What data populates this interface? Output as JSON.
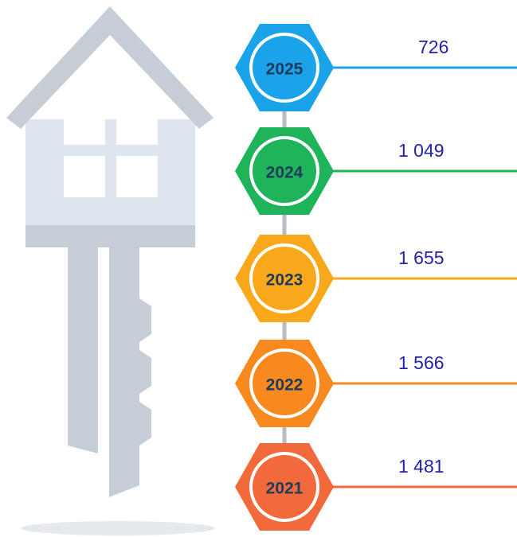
{
  "items": [
    {
      "year": "2025",
      "value": "726",
      "color": "#1aa3e8"
    },
    {
      "year": "2024",
      "value": "1 049",
      "color": "#1fb35a"
    },
    {
      "year": "2023",
      "value": "1 655",
      "color": "#f9a81b"
    },
    {
      "year": "2022",
      "value": "1 566",
      "color": "#f7891f"
    },
    {
      "year": "2021",
      "value": "1 481",
      "color": "#f26a3c"
    }
  ]
}
